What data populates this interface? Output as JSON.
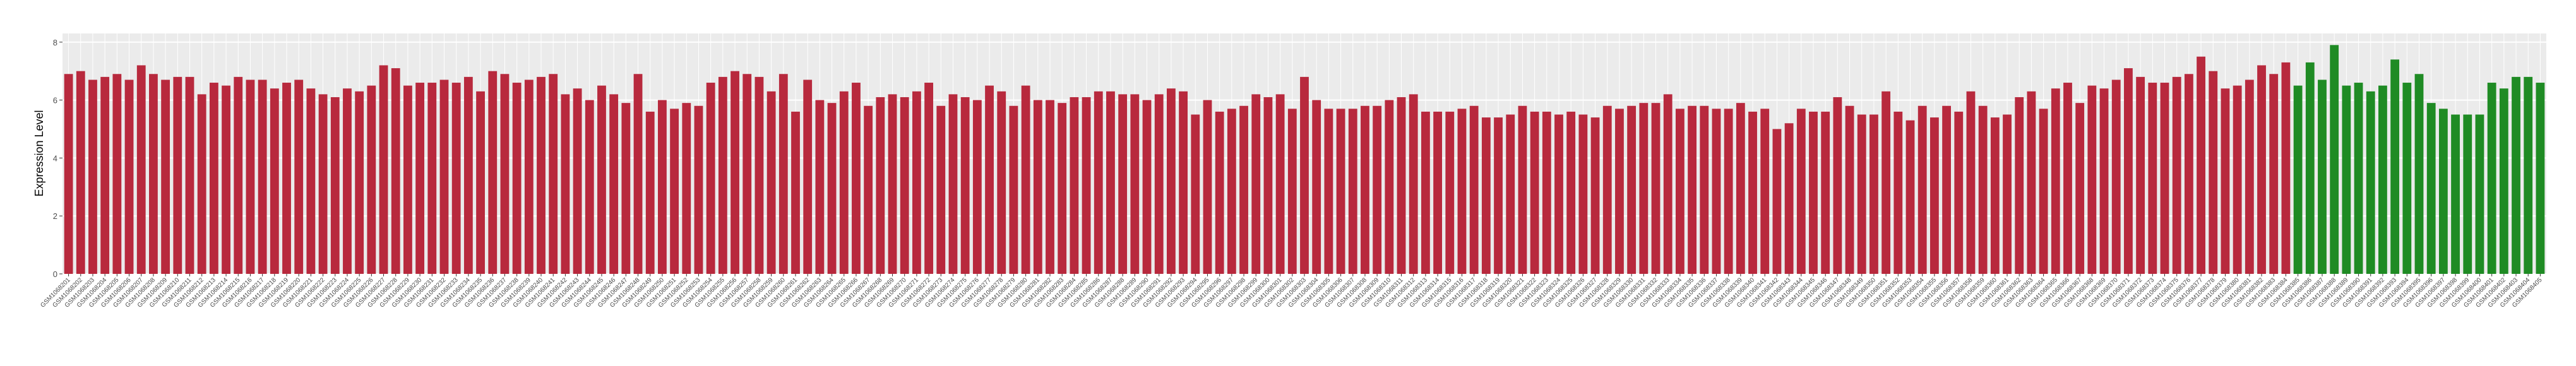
{
  "chart_data": {
    "type": "bar",
    "y_label": "Expression Level",
    "categories": [
      "GSM1068201",
      "GSM1068202",
      "GSM1068203",
      "GSM1068204",
      "GSM1068205",
      "GSM1068206",
      "GSM1068207",
      "GSM1068208",
      "GSM1068209",
      "GSM1068210",
      "GSM1068211",
      "GSM1068212",
      "GSM1068213",
      "GSM1068214",
      "GSM1068215",
      "GSM1068216",
      "GSM1068217",
      "GSM1068218",
      "GSM1068219",
      "GSM1068220",
      "GSM1068221",
      "GSM1068222",
      "GSM1068223",
      "GSM1068224",
      "GSM1068225",
      "GSM1068226",
      "GSM1068227",
      "GSM1068228",
      "GSM1068229",
      "GSM1068230",
      "GSM1068231",
      "GSM1068232",
      "GSM1068233",
      "GSM1068234",
      "GSM1068235",
      "GSM1068236",
      "GSM1068237",
      "GSM1068238",
      "GSM1068239",
      "GSM1068240",
      "GSM1068241",
      "GSM1068242",
      "GSM1068243",
      "GSM1068244",
      "GSM1068245",
      "GSM1068246",
      "GSM1068247",
      "GSM1068248",
      "GSM1068249",
      "GSM1068250",
      "GSM1068251",
      "GSM1068252",
      "GSM1068253",
      "GSM1068254",
      "GSM1068255",
      "GSM1068256",
      "GSM1068257",
      "GSM1068258",
      "GSM1068259",
      "GSM1068260",
      "GSM1068261",
      "GSM1068262",
      "GSM1068263",
      "GSM1068264",
      "GSM1068265",
      "GSM1068266",
      "GSM1068267",
      "GSM1068268",
      "GSM1068269",
      "GSM1068270",
      "GSM1068271",
      "GSM1068272",
      "GSM1068273",
      "GSM1068274",
      "GSM1068275",
      "GSM1068276",
      "GSM1068277",
      "GSM1068278",
      "GSM1068279",
      "GSM1068280",
      "GSM1068281",
      "GSM1068282",
      "GSM1068283",
      "GSM1068284",
      "GSM1068285",
      "GSM1068286",
      "GSM1068287",
      "GSM1068288",
      "GSM1068289",
      "GSM1068290",
      "GSM1068291",
      "GSM1068292",
      "GSM1068293",
      "GSM1068294",
      "GSM1068295",
      "GSM1068296",
      "GSM1068297",
      "GSM1068298",
      "GSM1068299",
      "GSM1068300",
      "GSM1068301",
      "GSM1068302",
      "GSM1068303",
      "GSM1068304",
      "GSM1068305",
      "GSM1068306",
      "GSM1068307",
      "GSM1068308",
      "GSM1068309",
      "GSM1068310",
      "GSM1068311",
      "GSM1068312",
      "GSM1068313",
      "GSM1068314",
      "GSM1068315",
      "GSM1068316",
      "GSM1068317",
      "GSM1068318",
      "GSM1068319",
      "GSM1068320",
      "GSM1068321",
      "GSM1068322",
      "GSM1068323",
      "GSM1068324",
      "GSM1068325",
      "GSM1068326",
      "GSM1068327",
      "GSM1068328",
      "GSM1068329",
      "GSM1068330",
      "GSM1068331",
      "GSM1068332",
      "GSM1068333",
      "GSM1068334",
      "GSM1068335",
      "GSM1068336",
      "GSM1068337",
      "GSM1068338",
      "GSM1068339",
      "GSM1068340",
      "GSM1068341",
      "GSM1068342",
      "GSM1068343",
      "GSM1068344",
      "GSM1068345",
      "GSM1068346",
      "GSM1068347",
      "GSM1068348",
      "GSM1068349",
      "GSM1068350",
      "GSM1068351",
      "GSM1068352",
      "GSM1068353",
      "GSM1068354",
      "GSM1068355",
      "GSM1068356",
      "GSM1068357",
      "GSM1068358",
      "GSM1068359",
      "GSM1068360",
      "GSM1068361",
      "GSM1068362",
      "GSM1068363",
      "GSM1068364",
      "GSM1068365",
      "GSM1068366",
      "GSM1068367",
      "GSM1068368",
      "GSM1068369",
      "GSM1068370",
      "GSM1068371",
      "GSM1068372",
      "GSM1068373",
      "GSM1068374",
      "GSM1068375",
      "GSM1068376",
      "GSM1068377",
      "GSM1068378",
      "GSM1068379",
      "GSM1068380",
      "GSM1068381",
      "GSM1068382",
      "GSM1068383",
      "GSM1068384",
      "GSM1068385",
      "GSM1068386",
      "GSM1068387",
      "GSM1068388",
      "GSM1068389",
      "GSM1068390",
      "GSM1068391",
      "GSM1068392",
      "GSM1068393",
      "GSM1068394",
      "GSM1068395",
      "GSM1068396",
      "GSM1068397",
      "GSM1068398",
      "GSM1068399",
      "GSM1068400",
      "GSM1068401",
      "GSM1068402",
      "GSM1068403",
      "GSM1068404",
      "GSM1068405"
    ],
    "series": [
      {
        "color": "#b8293d",
        "values": [
          6.9,
          7.0,
          6.7,
          6.8,
          6.9,
          6.7,
          7.2,
          6.9,
          6.7,
          6.8,
          6.8,
          6.2,
          6.6,
          6.5,
          6.8,
          6.7,
          6.7,
          6.4,
          6.6,
          6.7,
          6.4,
          6.2,
          6.1,
          6.4,
          6.3,
          6.5,
          7.2,
          7.1,
          6.5,
          6.6,
          6.6,
          6.7,
          6.6,
          6.8,
          6.3,
          7.0,
          6.9,
          6.6,
          6.7,
          6.8,
          6.9,
          6.2,
          6.4,
          6.0,
          6.5,
          6.2,
          5.9,
          6.9,
          5.6,
          6.0,
          5.7,
          5.9,
          5.8,
          6.6,
          6.8,
          7.0,
          6.9,
          6.8,
          6.3,
          6.9,
          5.6,
          6.7,
          6.0,
          5.9,
          6.3,
          6.6,
          5.8,
          6.1,
          6.2,
          6.1,
          6.3,
          6.6,
          5.8,
          6.2,
          6.1,
          6.0,
          6.5,
          6.3,
          5.8,
          6.5,
          6.0,
          6.0,
          5.9,
          6.1,
          6.1,
          6.3,
          6.3,
          6.2,
          6.2,
          6.0,
          6.2,
          6.4,
          6.3,
          5.5,
          6.0,
          5.6,
          5.7,
          5.8,
          6.2,
          6.1,
          6.2,
          5.7,
          6.8,
          6.0,
          5.7,
          5.7,
          5.7,
          5.8,
          5.8,
          6.0,
          6.1,
          6.2,
          5.6,
          5.6,
          5.6,
          5.7,
          5.8,
          5.4,
          5.4,
          5.5,
          5.8,
          5.6,
          5.6,
          5.5,
          5.6,
          5.5,
          5.4,
          5.8,
          5.7,
          5.8,
          5.9,
          5.9,
          6.2,
          5.7,
          5.8,
          5.8,
          5.7,
          5.7,
          5.9,
          5.6,
          5.7,
          5.0,
          5.2,
          5.7,
          5.6,
          5.6,
          6.1,
          5.8,
          5.5,
          5.5,
          6.3,
          5.6,
          5.3,
          5.8,
          5.4,
          5.8,
          5.6,
          6.3,
          5.8,
          5.4,
          5.5,
          6.1,
          6.3,
          5.7,
          6.4,
          6.6,
          5.9,
          6.5,
          6.4,
          6.7,
          7.1,
          6.8,
          6.6,
          6.6,
          6.8,
          6.9,
          7.5,
          7.0,
          6.4,
          6.5,
          6.7,
          7.2,
          6.9,
          7.3,
          null,
          null,
          null,
          null,
          null,
          null,
          null,
          null,
          null,
          null,
          null,
          null,
          null,
          null,
          null,
          null,
          null,
          null,
          null,
          null,
          null
        ]
      },
      {
        "color": "#1f8b24",
        "values": [
          null,
          null,
          null,
          null,
          null,
          null,
          null,
          null,
          null,
          null,
          null,
          null,
          null,
          null,
          null,
          null,
          null,
          null,
          null,
          null,
          null,
          null,
          null,
          null,
          null,
          null,
          null,
          null,
          null,
          null,
          null,
          null,
          null,
          null,
          null,
          null,
          null,
          null,
          null,
          null,
          null,
          null,
          null,
          null,
          null,
          null,
          null,
          null,
          null,
          null,
          null,
          null,
          null,
          null,
          null,
          null,
          null,
          null,
          null,
          null,
          null,
          null,
          null,
          null,
          null,
          null,
          null,
          null,
          null,
          null,
          null,
          null,
          null,
          null,
          null,
          null,
          null,
          null,
          null,
          null,
          null,
          null,
          null,
          null,
          null,
          null,
          null,
          null,
          null,
          null,
          null,
          null,
          null,
          null,
          null,
          null,
          null,
          null,
          null,
          null,
          null,
          null,
          null,
          null,
          null,
          null,
          null,
          null,
          null,
          null,
          null,
          null,
          null,
          null,
          null,
          null,
          null,
          null,
          null,
          null,
          null,
          null,
          null,
          null,
          null,
          null,
          null,
          null,
          null,
          null,
          null,
          null,
          null,
          null,
          null,
          null,
          null,
          null,
          null,
          null,
          null,
          null,
          null,
          null,
          null,
          null,
          null,
          null,
          null,
          null,
          null,
          null,
          null,
          null,
          null,
          null,
          null,
          null,
          null,
          null,
          null,
          null,
          null,
          null,
          null,
          null,
          null,
          null,
          null,
          null,
          null,
          null,
          null,
          null,
          null,
          null,
          null,
          null,
          null,
          null,
          null,
          null,
          null,
          null,
          6.5,
          7.3,
          6.7,
          7.9,
          6.5,
          6.6,
          6.3,
          6.5,
          7.4,
          6.6,
          6.9,
          5.9,
          5.7,
          5.5,
          5.5,
          5.5,
          6.6,
          6.4,
          6.8,
          6.8,
          6.6
        ]
      }
    ],
    "ylim": [
      0,
      8.3
    ],
    "yticks": [
      0,
      2,
      4,
      6,
      8
    ],
    "grid": true
  }
}
